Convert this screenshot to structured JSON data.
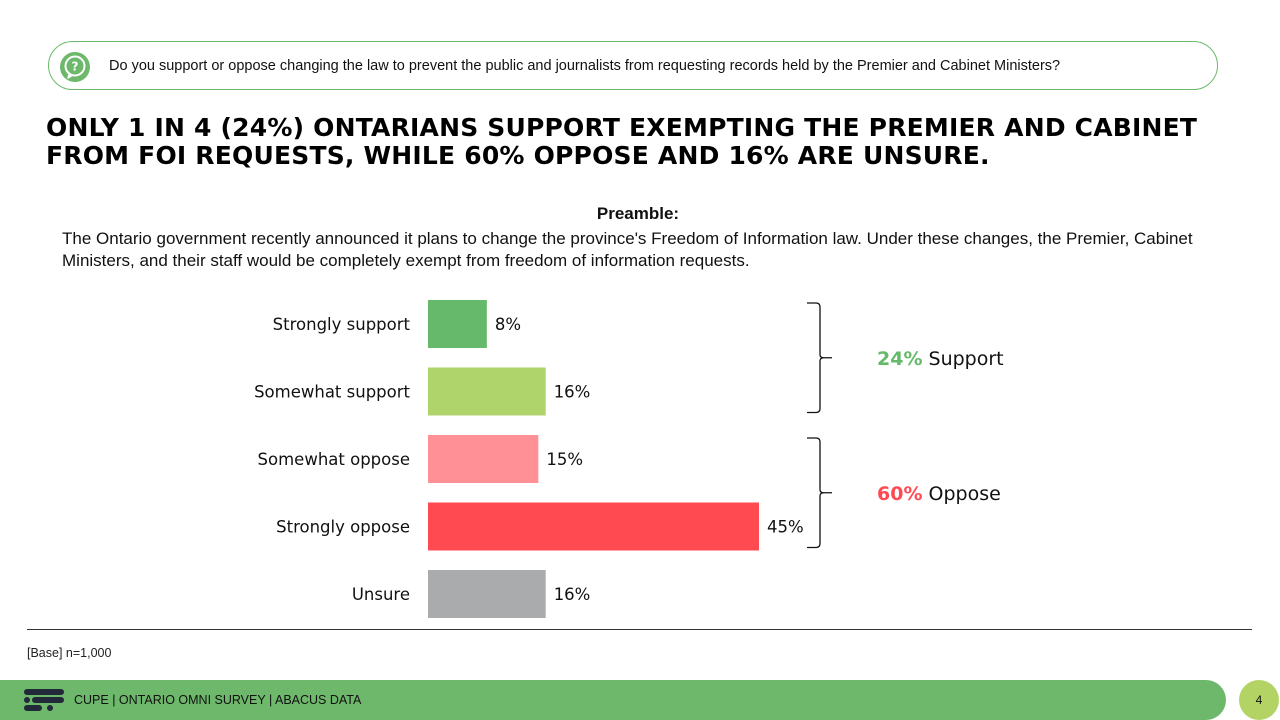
{
  "question": "Do you support or oppose changing the law to prevent the public and journalists from requesting records held by the Premier and Cabinet Ministers?",
  "headline": "ONLY 1 IN 4 (24%) ONTARIANS SUPPORT EXEMPTING THE PREMIER AND CABINET FROM FOI REQUESTS, WHILE 60% OPPOSE AND 16% ARE UNSURE.",
  "preamble": {
    "title": "Preamble:",
    "text": "The Ontario government recently announced it plans to change the province's Freedom of Information law. Under these changes, the Premier, Cabinet Ministers, and their staff would be completely exempt from freedom of information requests."
  },
  "chart_data": {
    "type": "bar",
    "orientation": "horizontal",
    "categories": [
      "Strongly support",
      "Somewhat support",
      "Somewhat oppose",
      "Strongly oppose",
      "Unsure"
    ],
    "values": [
      8,
      16,
      15,
      45,
      16
    ],
    "value_labels": [
      "8%",
      "16%",
      "15%",
      "45%",
      "16%"
    ],
    "colors": [
      "#66b86a",
      "#afd46c",
      "#ff9196",
      "#ff4a52",
      "#a9abac"
    ],
    "xlim": [
      0,
      45
    ],
    "groups": [
      {
        "pct": "24%",
        "label": "Support",
        "color": "#66b86a",
        "from": 0,
        "to": 1
      },
      {
        "pct": "60%",
        "label": "Oppose",
        "color": "#ff4a52",
        "from": 2,
        "to": 3
      }
    ]
  },
  "base_note": "[Base] n=1,000",
  "footer": {
    "text": "CUPE | ONTARIO OMNI SURVEY | ABACUS DATA",
    "page_number": "4"
  },
  "colors": {
    "brand_green": "#6db86b",
    "page_circle": "#b3d465"
  }
}
